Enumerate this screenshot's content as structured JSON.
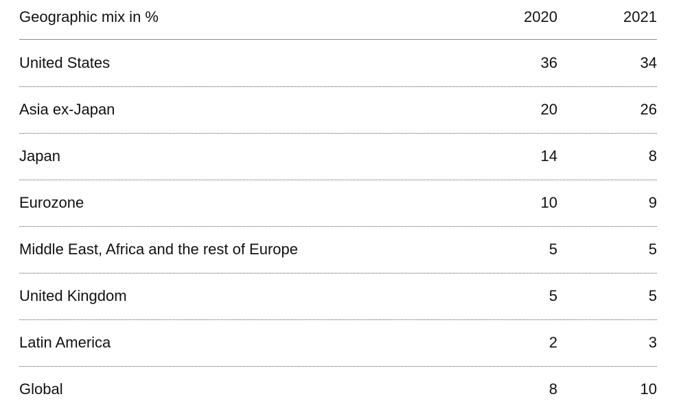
{
  "table": {
    "header": [
      "Geographic mix in %",
      "2020",
      "2021"
    ],
    "rows": [
      [
        "United States",
        36,
        34
      ],
      [
        "Asia ex-Japan",
        20,
        26
      ],
      [
        "Japan",
        14,
        8
      ],
      [
        "Eurozone",
        10,
        9
      ],
      [
        "Middle East, Africa and the rest of Europe",
        5,
        5
      ],
      [
        "United Kingdom",
        5,
        5
      ],
      [
        "Latin America",
        2,
        3
      ],
      [
        "Global",
        8,
        10
      ]
    ]
  }
}
